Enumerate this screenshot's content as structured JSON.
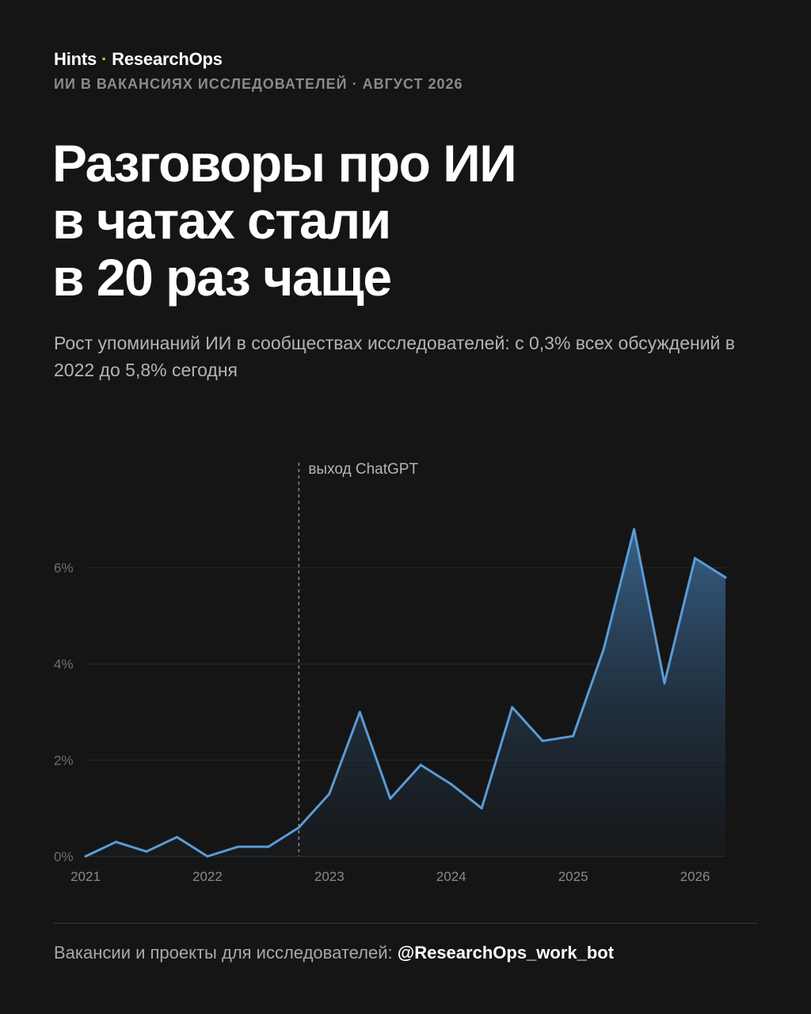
{
  "header": {
    "brand_name": "Hints",
    "brand_sep": "·",
    "brand_sub": "ResearchOps",
    "kicker": "ИИ В ВАКАНСИЯХ ИССЛЕДОВАТЕЛЕЙ · АВГУСТ 2026"
  },
  "headline": {
    "line1": "Разговоры про ИИ",
    "line2": "в чатах стали",
    "line3": "в 20 раз чаще"
  },
  "subtitle": "Рост упоминаний ИИ в сообществах исследователей: с 0,3% всех обсуждений в 2022 до 5,8% сегодня",
  "chart_data": {
    "type": "area",
    "x_ticks": [
      "2021",
      "2022",
      "2023",
      "2024",
      "2025",
      "2026"
    ],
    "y_ticks": [
      "0%",
      "2%",
      "4%",
      "6%"
    ],
    "ylim": [
      0,
      7
    ],
    "xlim": [
      2021.0,
      2026.25
    ],
    "grid": true,
    "annotation": {
      "x": 2022.75,
      "label": "выход ChatGPT"
    },
    "series": [
      {
        "color": "#5a9bd5",
        "points": [
          [
            2021.0,
            0.0
          ],
          [
            2021.25,
            0.3
          ],
          [
            2021.5,
            0.1
          ],
          [
            2021.75,
            0.4
          ],
          [
            2022.0,
            0.0
          ],
          [
            2022.25,
            0.2
          ],
          [
            2022.5,
            0.2
          ],
          [
            2022.75,
            0.6
          ],
          [
            2023.0,
            1.3
          ],
          [
            2023.25,
            3.0
          ],
          [
            2023.5,
            1.2
          ],
          [
            2023.75,
            1.9
          ],
          [
            2024.0,
            1.5
          ],
          [
            2024.25,
            1.0
          ],
          [
            2024.5,
            3.1
          ],
          [
            2024.75,
            2.4
          ],
          [
            2025.0,
            2.5
          ],
          [
            2025.25,
            4.3
          ],
          [
            2025.5,
            6.8
          ],
          [
            2025.75,
            3.6
          ],
          [
            2026.0,
            6.2
          ],
          [
            2026.25,
            5.8
          ]
        ]
      }
    ]
  },
  "footer": {
    "text": "Вакансии и проекты для исследователей: ",
    "handle": "@ResearchOps_work_bot"
  },
  "colors": {
    "background": "#151515",
    "accent": "#f2b233",
    "line": "#5a9bd5"
  }
}
